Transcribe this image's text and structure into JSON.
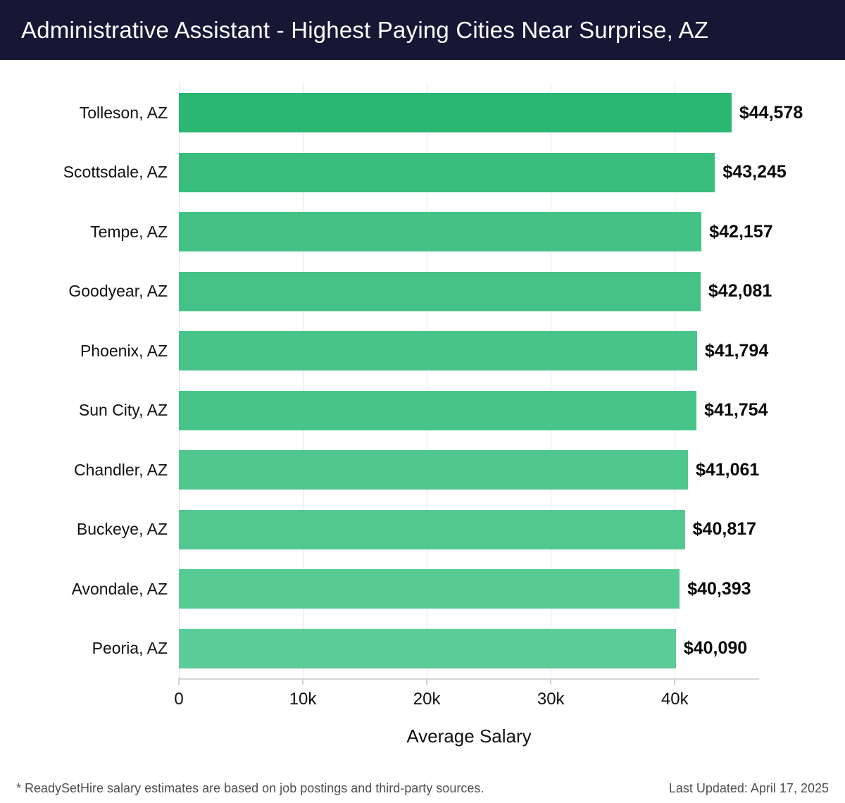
{
  "header": {
    "title": "Administrative Assistant - Highest Paying Cities Near Surprise, AZ",
    "bg_color": "#161635",
    "text_color": "#ffffff"
  },
  "chart_data": {
    "type": "bar",
    "orientation": "horizontal",
    "title": "Administrative Assistant - Highest Paying Cities Near Surprise, AZ",
    "categories": [
      "Tolleson, AZ",
      "Scottsdale, AZ",
      "Tempe, AZ",
      "Goodyear, AZ",
      "Phoenix, AZ",
      "Sun City, AZ",
      "Chandler, AZ",
      "Buckeye, AZ",
      "Avondale, AZ",
      "Peoria, AZ"
    ],
    "values": [
      44578,
      43245,
      42157,
      42081,
      41794,
      41754,
      41061,
      40817,
      40393,
      40090
    ],
    "value_labels": [
      "$44,578",
      "$43,245",
      "$42,157",
      "$42,081",
      "$41,794",
      "$41,754",
      "$41,061",
      "$40,817",
      "$40,393",
      "$40,090"
    ],
    "bar_colors": [
      "#29b772",
      "#38bd7d",
      "#44c286",
      "#45c287",
      "#48c389",
      "#48c489",
      "#50c78f",
      "#53c891",
      "#58ca94",
      "#5bcb97"
    ],
    "xlabel": "Average Salary",
    "x_tick_values": [
      0,
      10000,
      20000,
      30000,
      40000
    ],
    "x_tick_labels": [
      "0",
      "10k",
      "20k",
      "30k",
      "40k"
    ],
    "xlim": [
      0,
      46800
    ],
    "grid": true,
    "legend": "none"
  },
  "colors": {
    "gridline": "#e4e4e4",
    "axis_line": "#d6d6d6",
    "tick_mark": "#cfcfcf",
    "label_text": "#111111",
    "value_text": "#0a0a0a",
    "footer_text": "#4f4f4f"
  },
  "footer": {
    "disclaimer": "* ReadySetHire salary estimates are based on job postings and third-party sources.",
    "last_updated": "Last Updated: April 17, 2025"
  }
}
